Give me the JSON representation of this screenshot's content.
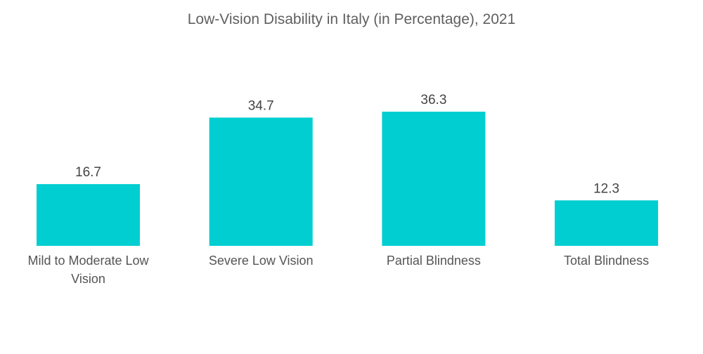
{
  "chart_data": {
    "type": "bar",
    "title": "Low-Vision Disability in Italy (in Percentage), 2021",
    "xlabel": "",
    "ylabel": "",
    "categories": [
      "Mild to Moderate Low Vision",
      "Severe Low Vision",
      "Partial Blindness",
      "Total Blindness"
    ],
    "category_lines": [
      [
        "Mild to Moderate Low",
        "Vision"
      ],
      [
        "Severe Low Vision"
      ],
      [
        "Partial Blindness"
      ],
      [
        "Total Blindness"
      ]
    ],
    "values": [
      16.7,
      34.7,
      36.3,
      12.3
    ],
    "data_labels": [
      "16.7",
      "34.7",
      "36.3",
      "12.3"
    ],
    "ylim": [
      0,
      36.3
    ],
    "grid": false,
    "legend": "none",
    "bar_color": "#00ced1"
  }
}
